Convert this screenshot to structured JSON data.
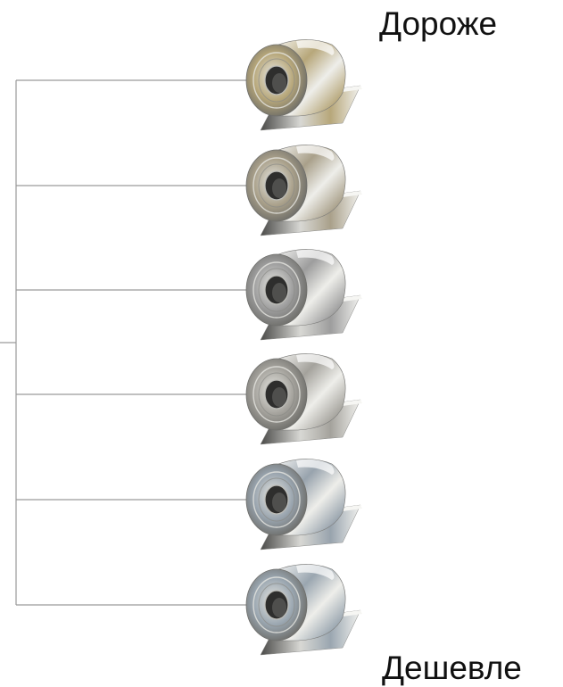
{
  "labels": {
    "top": "Дороже",
    "bottom": "Дешевле"
  },
  "coils": [
    {
      "name": "coil-1",
      "tint": "#b7a77a"
    },
    {
      "name": "coil-2",
      "tint": "#a9a08a"
    },
    {
      "name": "coil-3",
      "tint": "#9d9d9d"
    },
    {
      "name": "coil-4",
      "tint": "#a4a29c"
    },
    {
      "name": "coil-5",
      "tint": "#98a3ad"
    },
    {
      "name": "coil-6",
      "tint": "#9aa6b0"
    }
  ],
  "colors": {
    "line": "#9a9a9a",
    "highlight": "#f4f4f4",
    "shadow": "#3a3a3a"
  }
}
